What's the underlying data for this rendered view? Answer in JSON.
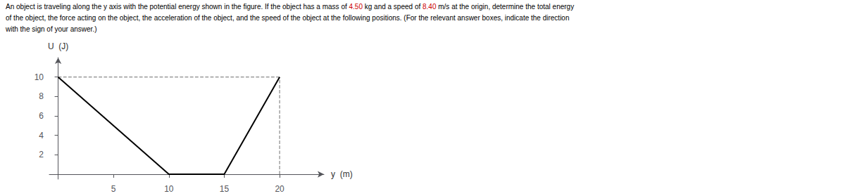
{
  "chart_data": {
    "type": "line",
    "annotations": [
      [
        {
          "text": "An object is traveling along the y axis with the potential energy shown in the figure. If the object has a mass of ",
          "color": "black"
        },
        {
          "text": "4.50",
          "color": "#CC0000"
        },
        {
          "text": " kg and a speed of ",
          "color": "black"
        },
        {
          "text": "8.40",
          "color": "#CC0000"
        },
        {
          "text": " m/s at the origin, determine the total energy",
          "color": "black"
        }
      ],
      [
        {
          "text": "of the object, the force acting on the object, the acceleration of the object, and the speed of the object at the following positions. (For the relevant answer boxes, indicate the direction",
          "color": "black"
        }
      ],
      [
        {
          "text": "with the sign of your answer.)",
          "color": "black"
        }
      ]
    ],
    "x_label": "y  (m)",
    "y_label": "U  (J)",
    "series": [
      {
        "x": [
          0,
          10,
          15,
          20
        ],
        "values": [
          10,
          0,
          0,
          10
        ],
        "color": "#000000",
        "line_style": "solid"
      },
      {
        "x": [
          0,
          20
        ],
        "values": [
          10,
          10
        ],
        "color": "#888888",
        "line_style": "dashed"
      },
      {
        "x": [
          20,
          20
        ],
        "values": [
          0,
          10
        ],
        "color": "#888888",
        "line_style": "dashed"
      }
    ],
    "xlim": [
      -0.8,
      24
    ],
    "ylim": [
      -0.5,
      12.0
    ],
    "xticks": [
      5,
      10,
      15,
      20
    ],
    "yticks": [
      2,
      4,
      6,
      8,
      10
    ],
    "grid": false
  }
}
